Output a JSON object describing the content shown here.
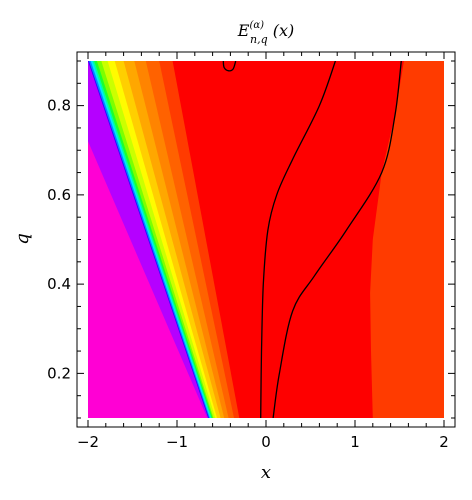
{
  "chart_data": {
    "type": "heatmap",
    "title": {
      "base": "E",
      "superscript": "(α)",
      "subscript": "n,q",
      "argument": " (x)"
    },
    "xlabel": "x",
    "ylabel": "q",
    "xlim": [
      -2,
      2
    ],
    "ylim": [
      0.1,
      0.9
    ],
    "x_ticks": [
      {
        "value": -2,
        "label": "−2"
      },
      {
        "value": -1,
        "label": "−1"
      },
      {
        "value": 0,
        "label": "0"
      },
      {
        "value": 1,
        "label": "1"
      },
      {
        "value": 2,
        "label": "2"
      }
    ],
    "y_ticks": [
      {
        "value": 0.2,
        "label": "0.2"
      },
      {
        "value": 0.4,
        "label": "0.4"
      },
      {
        "value": 0.6,
        "label": "0.6"
      },
      {
        "value": 0.8,
        "label": "0.8"
      }
    ],
    "background_color": "#fe0000",
    "bands": [
      {
        "color": "#ff3b00",
        "left": [
          [
            -2.0,
            0.9
          ],
          [
            -1.45,
            0.1
          ]
        ],
        "right": [
          [
            -1.05,
            0.9
          ],
          [
            -0.3,
            0.1
          ]
        ]
      },
      {
        "color": "#ff6200",
        "left": [
          [
            -2.0,
            0.9
          ],
          [
            -1.55,
            0.1
          ]
        ],
        "right": [
          [
            -1.2,
            0.9
          ],
          [
            -0.36,
            0.1
          ]
        ]
      },
      {
        "color": "#ff8400",
        "left": [
          [
            -2.0,
            0.9
          ],
          [
            -1.65,
            0.1
          ]
        ],
        "right": [
          [
            -1.35,
            0.9
          ],
          [
            -0.42,
            0.1
          ]
        ]
      },
      {
        "color": "#ffa700",
        "left": [
          [
            -2.0,
            0.9
          ],
          [
            -1.75,
            0.1
          ]
        ],
        "right": [
          [
            -1.48,
            0.9
          ],
          [
            -0.47,
            0.1
          ]
        ]
      },
      {
        "color": "#ffcf00",
        "left": [
          [
            -2.0,
            0.9
          ],
          [
            -1.8,
            0.1
          ]
        ],
        "right": [
          [
            -1.6,
            0.9
          ],
          [
            -0.51,
            0.1
          ]
        ]
      },
      {
        "color": "#fffb00",
        "left": [
          [
            -2.0,
            0.9
          ],
          [
            -1.85,
            0.1
          ]
        ],
        "right": [
          [
            -1.7,
            0.9
          ],
          [
            -0.55,
            0.1
          ]
        ]
      },
      {
        "color": "#cbff00",
        "left": [
          [
            -2.0,
            0.9
          ],
          [
            -1.9,
            0.1
          ]
        ],
        "right": [
          [
            -1.78,
            0.9
          ],
          [
            -0.57,
            0.1
          ]
        ]
      },
      {
        "color": "#7cff00",
        "left": [
          [
            -2.0,
            0.9
          ],
          [
            -1.93,
            0.1
          ]
        ],
        "right": [
          [
            -1.85,
            0.9
          ],
          [
            -0.59,
            0.1
          ]
        ]
      },
      {
        "color": "#1bff2e",
        "left": [
          [
            -2.0,
            0.9
          ],
          [
            -1.96,
            0.1
          ]
        ],
        "right": [
          [
            -1.9,
            0.9
          ],
          [
            -0.6,
            0.1
          ]
        ]
      },
      {
        "color": "#00ff9e",
        "left": [
          [
            -2.0,
            0.9
          ],
          [
            -1.98,
            0.1
          ]
        ],
        "right": [
          [
            -1.93,
            0.9
          ],
          [
            -0.61,
            0.1
          ]
        ]
      },
      {
        "color": "#00e5ff",
        "left": [
          [
            -2.0,
            0.9
          ],
          [
            -2.0,
            0.1
          ]
        ],
        "right": [
          [
            -1.95,
            0.9
          ],
          [
            -0.62,
            0.1
          ]
        ]
      },
      {
        "color": "#0088ff",
        "left": [
          [
            -2.0,
            0.9
          ],
          [
            -2.0,
            0.1
          ]
        ],
        "right": [
          [
            -1.97,
            0.9
          ],
          [
            -0.63,
            0.1
          ]
        ]
      },
      {
        "color": "#2d00ff",
        "left": [
          [
            -2.0,
            0.9
          ],
          [
            -2.0,
            0.1
          ]
        ],
        "right": [
          [
            -1.99,
            0.9
          ],
          [
            -0.64,
            0.1
          ]
        ]
      },
      {
        "color": "#b500ff",
        "left": [
          [
            -2.0,
            0.9
          ],
          [
            -2.0,
            0.1
          ]
        ],
        "right": [
          [
            -2.0,
            0.9
          ],
          [
            -0.65,
            0.1
          ]
        ]
      },
      {
        "color": "#ff00d4",
        "left": [
          [
            -2.0,
            0.9
          ],
          [
            -2.0,
            0.1
          ]
        ],
        "right": [
          [
            -2.0,
            0.72
          ],
          [
            -0.66,
            0.1
          ]
        ]
      }
    ],
    "right_region": {
      "color": "#ff3b00",
      "boundary": [
        [
          1.55,
          0.9
        ],
        [
          1.45,
          0.78
        ],
        [
          1.3,
          0.65
        ],
        [
          1.2,
          0.5
        ],
        [
          1.17,
          0.38
        ],
        [
          1.18,
          0.25
        ],
        [
          1.2,
          0.1
        ]
      ]
    },
    "contours": [
      {
        "points": [
          [
            -0.48,
            0.9
          ],
          [
            -0.47,
            0.885
          ],
          [
            -0.42,
            0.878
          ],
          [
            -0.37,
            0.882
          ],
          [
            -0.34,
            0.9
          ]
        ]
      },
      {
        "points": [
          [
            0.78,
            0.9
          ],
          [
            0.6,
            0.8
          ],
          [
            0.3,
            0.68
          ],
          [
            0.12,
            0.6
          ],
          [
            0.02,
            0.52
          ],
          [
            -0.03,
            0.4
          ],
          [
            -0.05,
            0.25
          ],
          [
            -0.06,
            0.1
          ]
        ]
      },
      {
        "points": [
          [
            1.52,
            0.9
          ],
          [
            1.45,
            0.78
          ],
          [
            1.3,
            0.65
          ],
          [
            0.9,
            0.52
          ],
          [
            0.55,
            0.42
          ],
          [
            0.3,
            0.34
          ],
          [
            0.15,
            0.2
          ],
          [
            0.08,
            0.1
          ]
        ]
      }
    ]
  }
}
